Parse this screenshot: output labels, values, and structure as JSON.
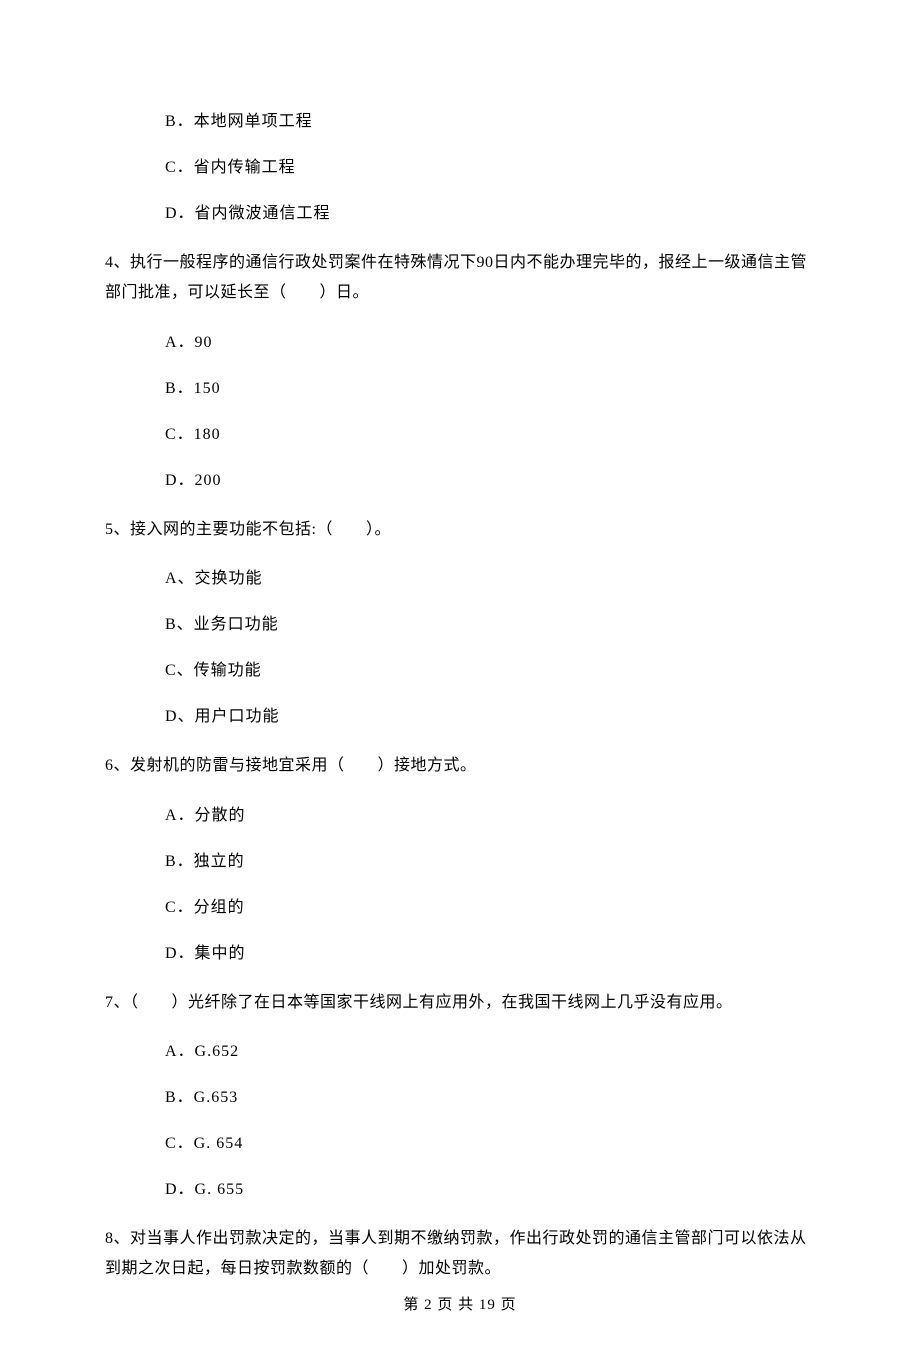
{
  "q3_options": {
    "b": "B．本地网单项工程",
    "c": "C．省内传输工程",
    "d": "D．省内微波通信工程"
  },
  "q4": {
    "text": "4、执行一般程序的通信行政处罚案件在特殊情况下90日内不能办理完毕的，报经上一级通信主管部门批准，可以延长至（　　）日。",
    "options": {
      "a": "A．90",
      "b": "B．150",
      "c": "C．180",
      "d": "D．200"
    }
  },
  "q5": {
    "text": "5、接入网的主要功能不包括:（　　）。",
    "options": {
      "a": "A、交换功能",
      "b": "B、业务口功能",
      "c": "C、传输功能",
      "d": "D、用户口功能"
    }
  },
  "q6": {
    "text": "6、发射机的防雷与接地宜采用（　　）接地方式。",
    "options": {
      "a": "A．分散的",
      "b": "B．独立的",
      "c": "C．分组的",
      "d": "D．集中的"
    }
  },
  "q7": {
    "text": "7、（　　）光纤除了在日本等国家干线网上有应用外，在我国干线网上几乎没有应用。",
    "options": {
      "a": "A．G.652",
      "b": "B．G.653",
      "c": "C．G. 654",
      "d": "D．G. 655"
    }
  },
  "q8": {
    "text": "8、对当事人作出罚款决定的，当事人到期不缴纳罚款，作出行政处罚的通信主管部门可以依法从到期之次日起，每日按罚款数额的（　　）加处罚款。"
  },
  "footer": "第 2 页 共 19 页"
}
